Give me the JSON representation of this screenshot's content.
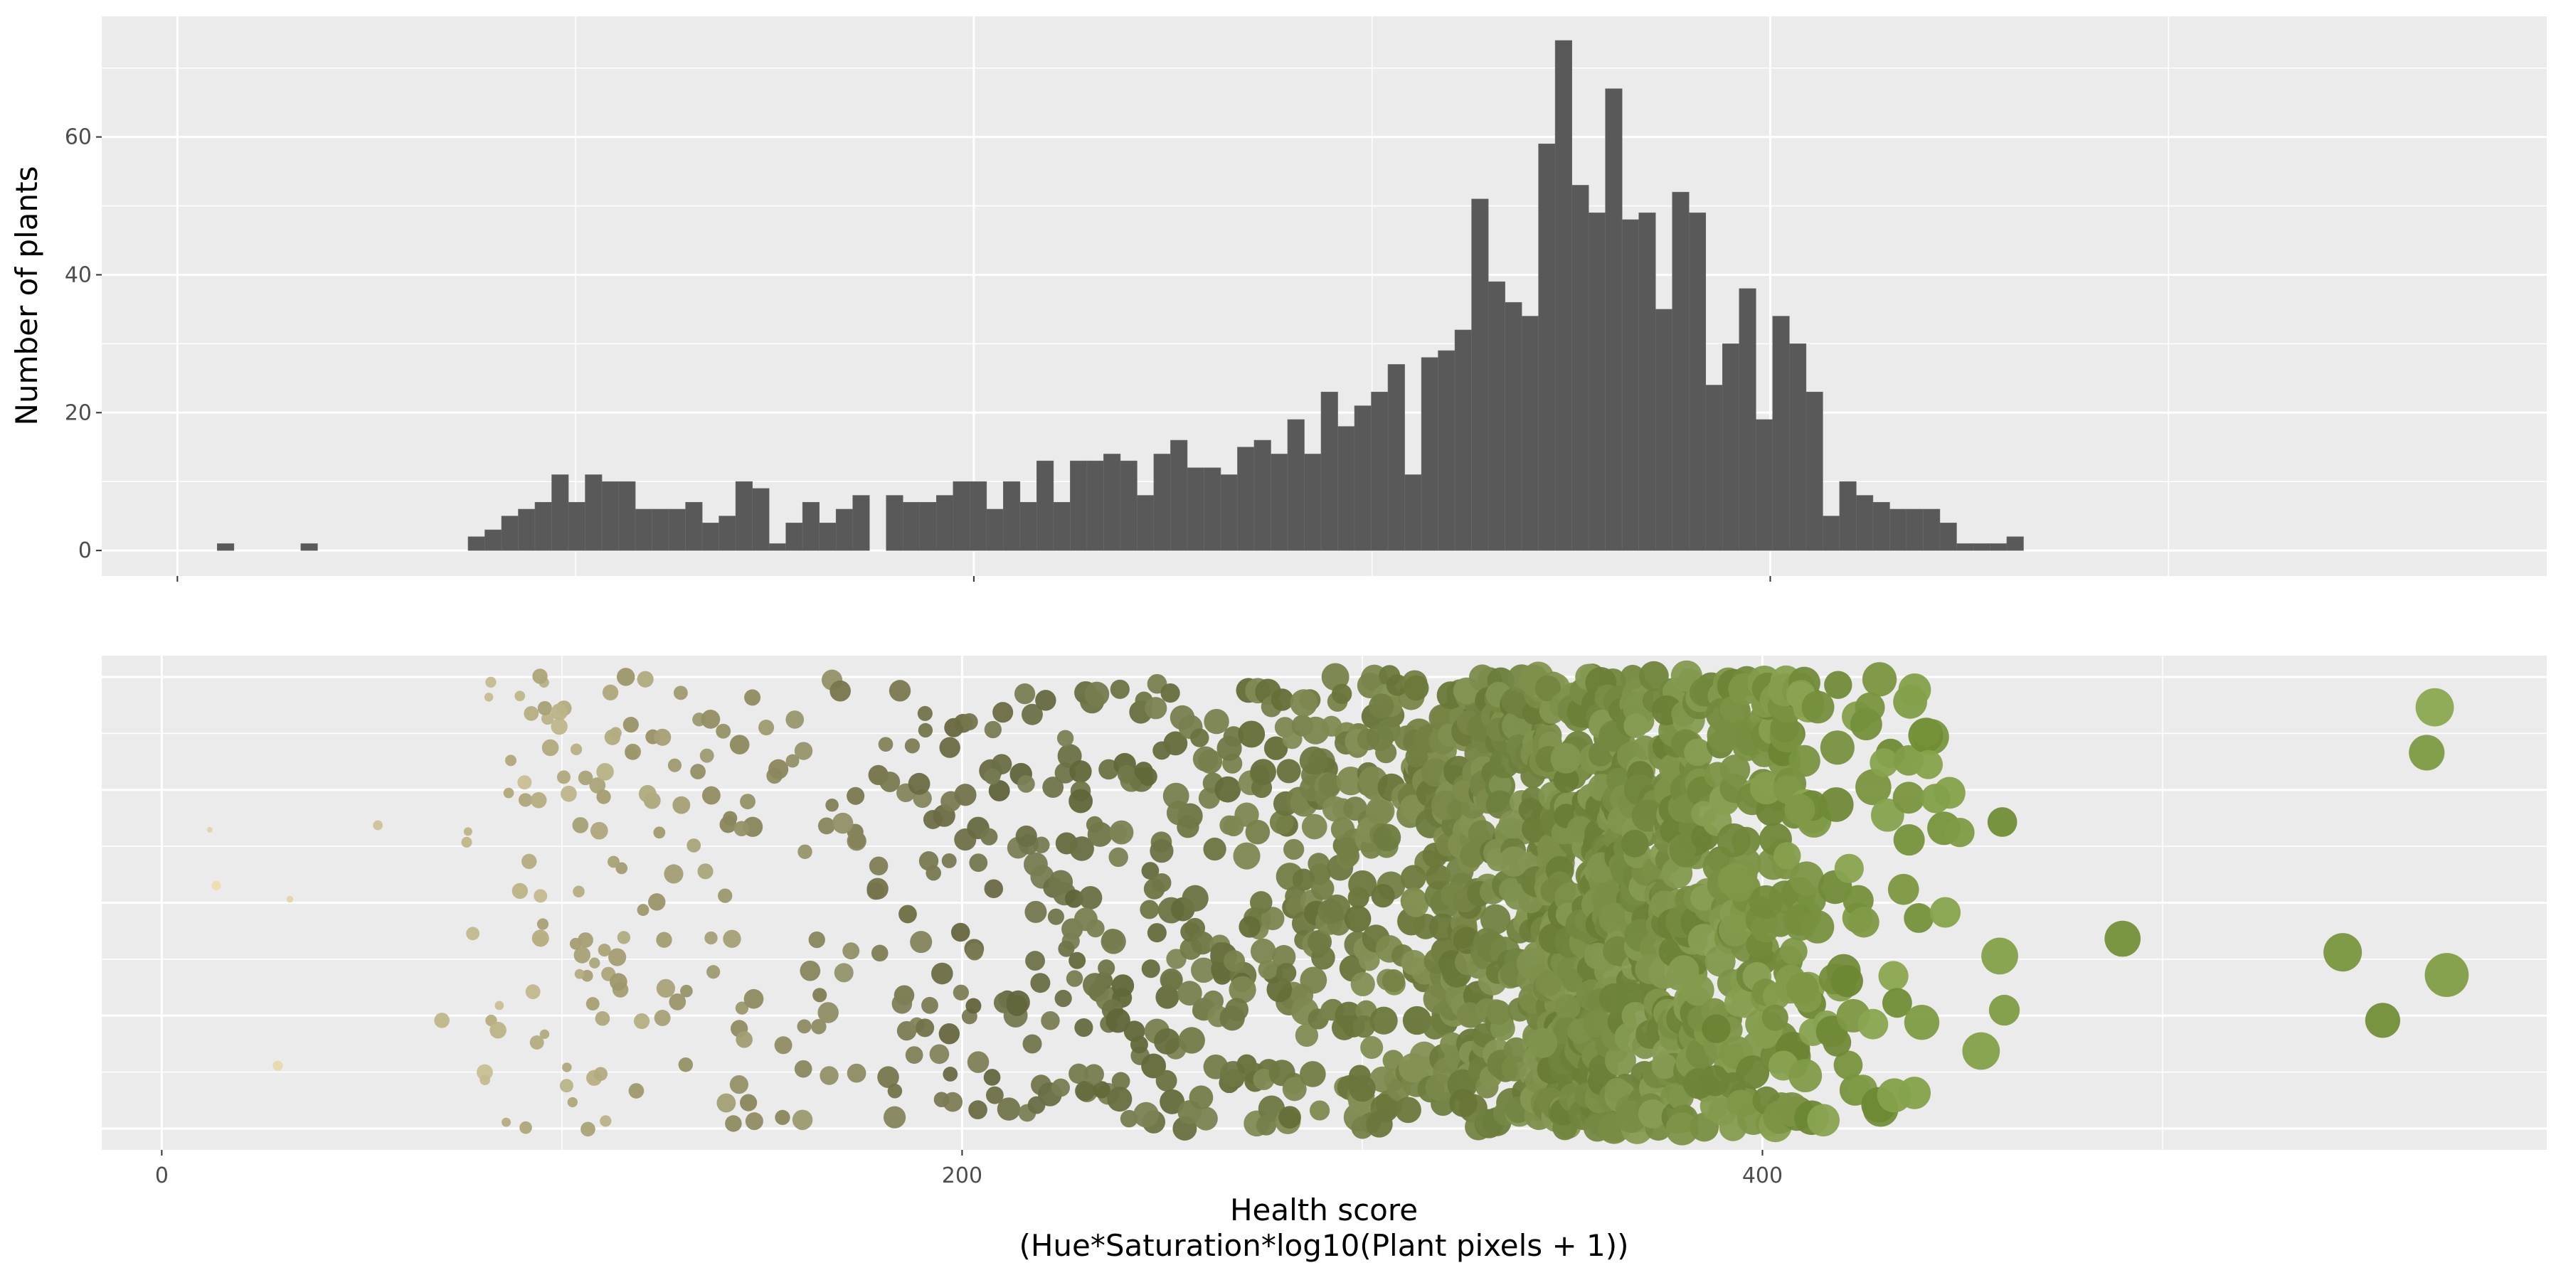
{
  "chart_data": [
    {
      "type": "bar",
      "chart_kind": "histogram",
      "ylabel": "Number of plants",
      "xlim": [
        -19,
        595
      ],
      "ylim": [
        -3.7,
        77.5
      ],
      "bin_width": 4.2,
      "bins_start": 10,
      "x_ticks": [
        {
          "value": 0,
          "label": ""
        },
        {
          "value": 200,
          "label": ""
        },
        {
          "value": 400,
          "label": ""
        }
      ],
      "y_ticks": [
        {
          "value": 0,
          "label": "0"
        },
        {
          "value": 20,
          "label": "20"
        },
        {
          "value": 40,
          "label": "40"
        },
        {
          "value": 60,
          "label": "60"
        }
      ],
      "bar_color": "#595959",
      "values": [
        1,
        0,
        0,
        0,
        0,
        1,
        0,
        0,
        0,
        0,
        0,
        0,
        0,
        0,
        0,
        2,
        3,
        5,
        6,
        7,
        11,
        7,
        11,
        10,
        10,
        6,
        6,
        6,
        7,
        4,
        5,
        10,
        9,
        1,
        4,
        7,
        4,
        6,
        8,
        0,
        8,
        7,
        7,
        8,
        10,
        10,
        6,
        10,
        7,
        13,
        7,
        13,
        13,
        14,
        13,
        8,
        14,
        16,
        12,
        12,
        11,
        15,
        16,
        14,
        19,
        14,
        23,
        18,
        21,
        23,
        27,
        11,
        28,
        29,
        32,
        51,
        39,
        36,
        34,
        59,
        74,
        53,
        49,
        67,
        48,
        49,
        35,
        52,
        49,
        24,
        30,
        38,
        19,
        34,
        30,
        23,
        5,
        10,
        8,
        7,
        6,
        6,
        6,
        4,
        1,
        1,
        1,
        2
      ],
      "grid": true
    },
    {
      "type": "scatter",
      "chart_kind": "jitter",
      "xlabel": "Health score\n(Hue*Saturation*log10(Plant pixels + 1))",
      "xlim": [
        -15,
        596
      ],
      "ylim": [
        0,
        1
      ],
      "y_note": "y is random vertical jitter (no printed axis)",
      "x_ticks": [
        {
          "value": 0,
          "label": "0"
        },
        {
          "value": 200,
          "label": "200"
        },
        {
          "value": 400,
          "label": "400"
        }
      ],
      "color_scale": {
        "low": "#e6d7a8",
        "mid": "#6e7048",
        "high": "#7d9a42"
      },
      "size_scale": {
        "min_value": 10,
        "max_value": 570
      },
      "points": [
        {
          "x": 12,
          "y": 0.66
        },
        {
          "x": 29,
          "y": 0.14
        },
        {
          "x": 54,
          "y": 0.67
        },
        {
          "x": 70,
          "y": 0.24
        },
        {
          "x": 300,
          "y": 0.09
        },
        {
          "x": 345,
          "y": 0.19
        },
        {
          "x": 410,
          "y": 0.31
        },
        {
          "x": 438,
          "y": 0.08
        },
        {
          "x": 490,
          "y": 0.42
        },
        {
          "x": 545,
          "y": 0.39
        },
        {
          "x": 568,
          "y": 0.93
        },
        {
          "x": 571,
          "y": 0.34
        },
        {
          "x": 566,
          "y": 0.83
        },
        {
          "x": 555,
          "y": 0.24
        }
      ],
      "point_count": 1450,
      "grid": true
    }
  ]
}
